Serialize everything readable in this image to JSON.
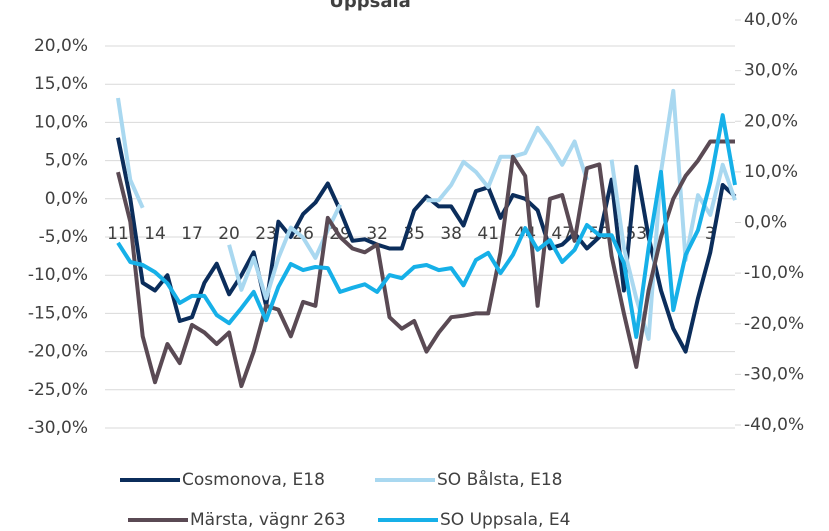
{
  "chart_data": {
    "type": "line",
    "title": "Uppsala",
    "categories": [
      "11",
      null,
      null,
      "14",
      null,
      null,
      "17",
      null,
      null,
      "20",
      null,
      null,
      "23",
      null,
      null,
      "26",
      null,
      null,
      "29",
      null,
      null,
      "32",
      null,
      null,
      "35",
      null,
      null,
      "38",
      null,
      null,
      "41",
      null,
      null,
      "44",
      null,
      null,
      "47",
      null,
      null,
      "50",
      null,
      null,
      "53",
      null,
      null,
      null,
      null,
      null,
      "3",
      null,
      null
    ],
    "series": [
      {
        "name": "Cosmonova, E18",
        "color": "#0b2d5b",
        "axis": "y",
        "values": [
          8,
          0,
          -11,
          -12,
          -10,
          -16,
          -15.5,
          -11,
          -8.5,
          -12.5,
          -10,
          -7,
          -14,
          -3,
          -5,
          -2,
          -0.5,
          2,
          -1.5,
          -5.5,
          -5.3,
          -6,
          -6.5,
          -6.5,
          -1.5,
          0.3,
          -1,
          -1,
          -3.5,
          1,
          1.5,
          -2.5,
          0.5,
          0,
          -1.5,
          -6.5,
          -6,
          -4.5,
          -6.5,
          -5,
          2.5,
          -12,
          4.2,
          -5,
          -12,
          -17,
          -20,
          -13,
          -7,
          1.8,
          0.3
        ]
      },
      {
        "name": "SO Bålsta, E18",
        "color": "#a9d8f0",
        "axis": "y2",
        "values": [
          24.6,
          8.4,
          2.9,
          null,
          null,
          null,
          null,
          null,
          null,
          -4.4,
          -13.3,
          -7,
          -15,
          -7,
          -1,
          -3,
          -7,
          -1.5,
          3.5,
          null,
          null,
          null,
          null,
          null,
          null,
          4.4,
          4.4,
          7.4,
          12,
          10,
          7,
          13,
          13,
          13.7,
          18.7,
          15.3,
          11.4,
          16,
          8.4,
          null,
          12.4,
          -5,
          -15,
          -23,
          10,
          26,
          -7.4,
          5.4,
          1.5,
          11.4,
          4.4
        ]
      },
      {
        "name": "Märsta, vägnr 263",
        "color": "#5a4a54",
        "axis": "y",
        "values": [
          3.5,
          -3,
          -18,
          -24,
          -19,
          -21.5,
          -16.5,
          -17.5,
          -19,
          -17.5,
          -24.5,
          -20,
          -14,
          -14.5,
          -18,
          -13.5,
          -14,
          -2.5,
          -5,
          -6.5,
          -7,
          -6,
          -15.5,
          -17,
          -16,
          -20,
          -17.5,
          -15.5,
          -15.3,
          -15,
          -15,
          -7,
          5.5,
          3,
          -14,
          0,
          0.5,
          -5.5,
          4,
          4.5,
          -7.5,
          -15,
          -22,
          -12,
          -5,
          0,
          3,
          5,
          7.5,
          7.5,
          7.5
        ]
      },
      {
        "name": "SO Uppsala, E4",
        "color": "#16b0e8",
        "axis": "y2",
        "values": [
          -4,
          -7.8,
          -8.4,
          -9.8,
          -12,
          -15.9,
          -14.5,
          -14.5,
          -18.3,
          -19.9,
          -16.9,
          -13.7,
          -19.3,
          -12.7,
          -8.2,
          -9.4,
          -8.8,
          -9,
          -13.7,
          -12.9,
          -12.2,
          -13.7,
          -10.4,
          -11,
          -8.8,
          -8.4,
          -9.4,
          -9,
          -12.4,
          -7.4,
          -6,
          -10,
          -6.4,
          -1.1,
          -5.4,
          -3.5,
          -7.8,
          -5.4,
          -0.5,
          -2.5,
          -2.5,
          -8,
          -22.6,
          -5,
          10,
          -17.3,
          -6.4,
          -1.5,
          8,
          21.2,
          7.4
        ]
      }
    ],
    "ylim": [
      -30,
      20
    ],
    "yticks": [
      {
        "value": -30,
        "label": "-30,0%"
      },
      {
        "value": -25,
        "label": "-25,0%"
      },
      {
        "value": -20,
        "label": "-20,0%"
      },
      {
        "value": -15,
        "label": "-15,0%"
      },
      {
        "value": -10,
        "label": "-10,0%"
      },
      {
        "value": -5,
        "label": "-5,0%"
      },
      {
        "value": 0,
        "label": "0,0%"
      },
      {
        "value": 5,
        "label": "5,0%"
      },
      {
        "value": 10,
        "label": "10,0%"
      },
      {
        "value": 15,
        "label": "15,0%"
      },
      {
        "value": 20,
        "label": "20,0%"
      }
    ],
    "y2lim": [
      -40,
      40
    ],
    "y2ticks": [
      {
        "value": -40,
        "label": "-40,0%"
      },
      {
        "value": -30,
        "label": "-30,0%"
      },
      {
        "value": -20,
        "label": "-20,0%"
      },
      {
        "value": -10,
        "label": "-10,0%"
      },
      {
        "value": 0,
        "label": "0,0%"
      },
      {
        "value": 10,
        "label": "10,0%"
      },
      {
        "value": 20,
        "label": "20,0%"
      },
      {
        "value": 30,
        "label": "30,0%"
      },
      {
        "value": 40,
        "label": "40,0%"
      }
    ],
    "grid": true,
    "legend": "bottom"
  }
}
